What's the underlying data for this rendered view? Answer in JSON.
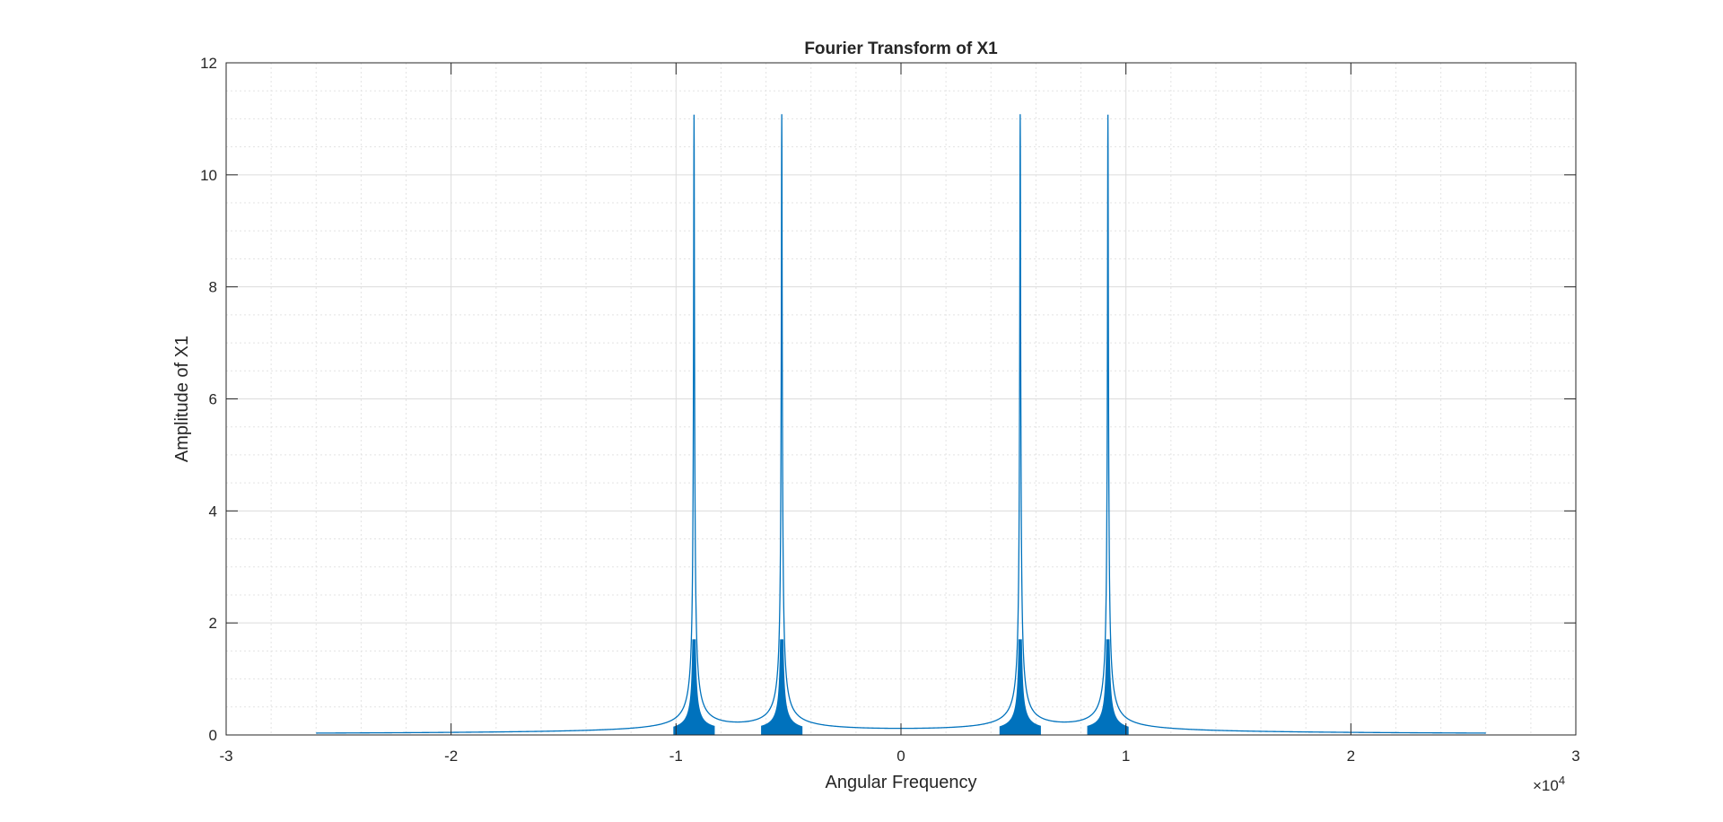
{
  "chart_data": {
    "type": "line",
    "title": "Fourier Transform of X1",
    "xlabel": "Angular Frequency",
    "ylabel": "Amplitude of X1",
    "xlim": [
      -30000,
      30000
    ],
    "ylim": [
      0,
      12
    ],
    "x_tick_values": [
      -30000,
      -20000,
      -10000,
      0,
      10000,
      20000,
      30000
    ],
    "x_tick_labels": [
      "-3",
      "-2",
      "-1",
      "0",
      "1",
      "2",
      "3"
    ],
    "x_exponent_base": "×10",
    "x_exponent_power": "4",
    "y_tick_values": [
      0,
      2,
      4,
      6,
      8,
      10,
      12
    ],
    "y_tick_labels": [
      "0",
      "2",
      "4",
      "6",
      "8",
      "10",
      "12"
    ],
    "grid": true,
    "minor_grid": true,
    "series": [
      {
        "color": "#0072BD",
        "peaks": [
          {
            "x": -9200,
            "amplitude": 11
          },
          {
            "x": -5300,
            "amplitude": 11
          },
          {
            "x": 5300,
            "amplitude": 11
          },
          {
            "x": 9200,
            "amplitude": 11
          }
        ],
        "x_extent": [
          -26000,
          26000
        ]
      }
    ]
  }
}
